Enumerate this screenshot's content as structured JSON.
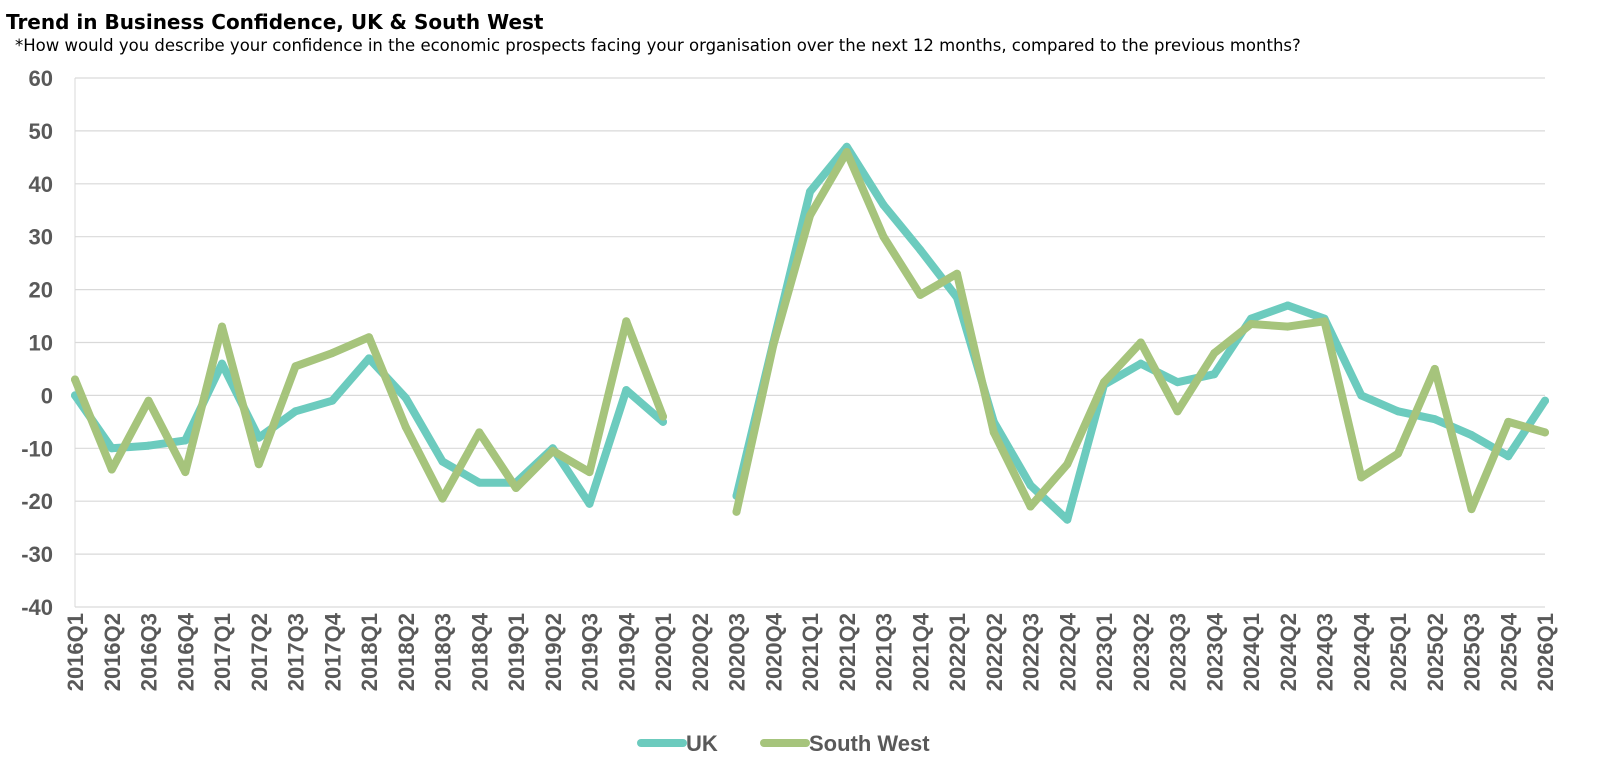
{
  "chart_data": {
    "type": "line",
    "title": "Trend in Business Confidence, UK & South West",
    "subtitle": "*How would you describe your confidence in the economic prospects facing your organisation over the next 12 months, compared to the previous months?",
    "xlabel": "",
    "ylabel": "",
    "ylim": [
      -40,
      60
    ],
    "yticks": [
      60,
      50,
      40,
      30,
      20,
      10,
      0,
      -10,
      -20,
      -30,
      -40
    ],
    "grid": true,
    "legend_position": "bottom-center",
    "categories": [
      "2016Q1",
      "2016Q2",
      "2016Q3",
      "2016Q4",
      "2017Q1",
      "2017Q2",
      "2017Q3",
      "2017Q4",
      "2018Q1",
      "2018Q2",
      "2018Q3",
      "2018Q4",
      "2019Q1",
      "2019Q2",
      "2019Q3",
      "2019Q4",
      "2020Q1",
      "2020Q2",
      "2020Q3",
      "2020Q4",
      "2021Q1",
      "2021Q2",
      "2021Q3",
      "2021Q4",
      "2022Q1",
      "2022Q2",
      "2022Q3",
      "2022Q4",
      "2023Q1",
      "2023Q2",
      "2023Q3",
      "2023Q4",
      "2024Q1",
      "2024Q2",
      "2024Q3",
      "2024Q4",
      "2025Q1",
      "2025Q2",
      "2025Q3",
      "2025Q4",
      "2026Q1"
    ],
    "series": [
      {
        "name": "UK",
        "color": "#6ccbbe",
        "values": [
          0,
          -10,
          -9.5,
          -8.5,
          6,
          -8,
          -3,
          -1,
          7,
          -0.5,
          -12.5,
          -16.5,
          -16.5,
          -10,
          -20.5,
          1,
          -5,
          null,
          -19,
          10,
          38.5,
          47,
          36,
          27.5,
          18.5,
          -5,
          -17,
          -23.5,
          2,
          6,
          2.5,
          4,
          14.5,
          17,
          14.5,
          0,
          -3,
          -4.5,
          -7.5,
          -11.5,
          -1
        ]
      },
      {
        "name": "South West",
        "color": "#a6c47c",
        "values": [
          3,
          -14,
          -1,
          -14.5,
          13,
          -13,
          5.5,
          8,
          11,
          -6,
          -19.5,
          -7,
          -17.5,
          -10.5,
          -14.5,
          14,
          -4,
          null,
          -22,
          9.5,
          34,
          46,
          30,
          19,
          23,
          -7,
          -21,
          -13,
          2.5,
          10,
          -3,
          8,
          13.5,
          13,
          14,
          -15.5,
          -11,
          5,
          -21.5,
          -5,
          -7
        ]
      }
    ]
  }
}
